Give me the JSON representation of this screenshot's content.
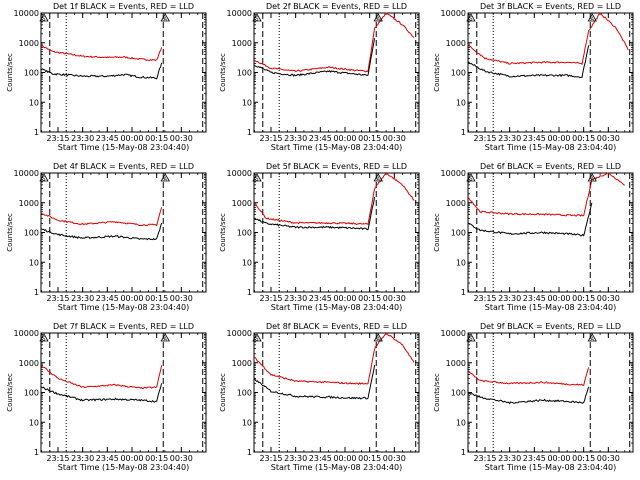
{
  "chart_data": {
    "type": "line",
    "layout": "3x3 grid of panels",
    "common": {
      "xlabel": "Start Time (15-May-08 23:04:40)",
      "ylabel": "Counts/sec",
      "x_tick_labels": [
        "23:15",
        "23:30",
        "23:45",
        "00:00",
        "00:15",
        "00:30"
      ],
      "y_tick_labels": [
        "1",
        "10",
        "100",
        "1000",
        "10000"
      ],
      "yscale": "log",
      "ylim": [
        1,
        10000
      ],
      "x_range": [
        "23:04:40",
        "00:45"
      ],
      "series_colors": {
        "events": "#000000",
        "lld": "#dd0000"
      },
      "markers": {
        "dashed_lines": [
          "23:10",
          "00:19",
          "00:43"
        ],
        "dotted_lines": [
          "23:20"
        ],
        "triangle_labels": [
          "S",
          "A"
        ]
      }
    },
    "panels": [
      {
        "title": "Det 1f BLACK = Events, RED = LLD",
        "events": [
          {
            "t": "23:05",
            "v": 130
          },
          {
            "t": "23:12",
            "v": 90
          },
          {
            "t": "23:30",
            "v": 75
          },
          {
            "t": "23:45",
            "v": 75
          },
          {
            "t": "23:55",
            "v": 85
          },
          {
            "t": "00:05",
            "v": 70
          },
          {
            "t": "00:15",
            "v": 65
          },
          {
            "t": "00:18",
            "v": 200
          }
        ],
        "lld": [
          {
            "t": "23:05",
            "v": 800
          },
          {
            "t": "23:12",
            "v": 500
          },
          {
            "t": "23:30",
            "v": 350
          },
          {
            "t": "23:45",
            "v": 320
          },
          {
            "t": "23:55",
            "v": 330
          },
          {
            "t": "00:05",
            "v": 280
          },
          {
            "t": "00:15",
            "v": 260
          },
          {
            "t": "00:18",
            "v": 700
          }
        ]
      },
      {
        "title": "Det 2f BLACK = Events, RED = LLD",
        "events": [
          {
            "t": "23:05",
            "v": 180
          },
          {
            "t": "23:15",
            "v": 100
          },
          {
            "t": "23:30",
            "v": 80
          },
          {
            "t": "23:50",
            "v": 110
          },
          {
            "t": "00:05",
            "v": 90
          },
          {
            "t": "00:14",
            "v": 80
          },
          {
            "t": "00:18",
            "v": 1500
          }
        ],
        "lld": [
          {
            "t": "23:05",
            "v": 260
          },
          {
            "t": "23:15",
            "v": 140
          },
          {
            "t": "23:30",
            "v": 110
          },
          {
            "t": "23:50",
            "v": 150
          },
          {
            "t": "00:05",
            "v": 120
          },
          {
            "t": "00:14",
            "v": 110
          },
          {
            "t": "00:18",
            "v": 3000
          },
          {
            "t": "00:25",
            "v": 10000
          },
          {
            "t": "00:35",
            "v": 4000
          },
          {
            "t": "00:42",
            "v": 1500
          }
        ]
      },
      {
        "title": "Det 3f BLACK = Events, RED = LLD",
        "events": [
          {
            "t": "23:05",
            "v": 220
          },
          {
            "t": "23:15",
            "v": 110
          },
          {
            "t": "23:30",
            "v": 75
          },
          {
            "t": "23:50",
            "v": 80
          },
          {
            "t": "00:05",
            "v": 80
          },
          {
            "t": "00:14",
            "v": 70
          },
          {
            "t": "00:18",
            "v": 800
          }
        ],
        "lld": [
          {
            "t": "23:05",
            "v": 800
          },
          {
            "t": "23:15",
            "v": 300
          },
          {
            "t": "23:30",
            "v": 200
          },
          {
            "t": "23:50",
            "v": 220
          },
          {
            "t": "00:05",
            "v": 220
          },
          {
            "t": "00:14",
            "v": 200
          },
          {
            "t": "00:18",
            "v": 2500
          },
          {
            "t": "00:25",
            "v": 10000
          },
          {
            "t": "00:35",
            "v": 3000
          },
          {
            "t": "00:42",
            "v": 600
          }
        ]
      },
      {
        "title": "Det 4f BLACK = Events, RED = LLD",
        "events": [
          {
            "t": "23:05",
            "v": 130
          },
          {
            "t": "23:15",
            "v": 85
          },
          {
            "t": "23:30",
            "v": 65
          },
          {
            "t": "23:50",
            "v": 75
          },
          {
            "t": "00:05",
            "v": 60
          },
          {
            "t": "00:15",
            "v": 60
          },
          {
            "t": "00:18",
            "v": 200
          }
        ],
        "lld": [
          {
            "t": "23:05",
            "v": 450
          },
          {
            "t": "23:15",
            "v": 260
          },
          {
            "t": "23:30",
            "v": 190
          },
          {
            "t": "23:50",
            "v": 230
          },
          {
            "t": "00:05",
            "v": 180
          },
          {
            "t": "00:15",
            "v": 180
          },
          {
            "t": "00:18",
            "v": 700
          }
        ]
      },
      {
        "title": "Det 5f BLACK = Events, RED = LLD",
        "events": [
          {
            "t": "23:05",
            "v": 300
          },
          {
            "t": "23:12",
            "v": 200
          },
          {
            "t": "23:30",
            "v": 150
          },
          {
            "t": "23:50",
            "v": 150
          },
          {
            "t": "00:05",
            "v": 140
          },
          {
            "t": "00:14",
            "v": 130
          },
          {
            "t": "00:18",
            "v": 1500
          }
        ],
        "lld": [
          {
            "t": "23:05",
            "v": 1000
          },
          {
            "t": "23:12",
            "v": 300
          },
          {
            "t": "23:30",
            "v": 210
          },
          {
            "t": "23:50",
            "v": 210
          },
          {
            "t": "00:05",
            "v": 200
          },
          {
            "t": "00:14",
            "v": 190
          },
          {
            "t": "00:18",
            "v": 3000
          },
          {
            "t": "00:25",
            "v": 10000
          },
          {
            "t": "00:35",
            "v": 4000
          },
          {
            "t": "00:42",
            "v": 1200
          }
        ]
      },
      {
        "title": "Det 6f BLACK = Events, RED = LLD",
        "events": [
          {
            "t": "23:05",
            "v": 200
          },
          {
            "t": "23:12",
            "v": 120
          },
          {
            "t": "23:30",
            "v": 90
          },
          {
            "t": "23:50",
            "v": 100
          },
          {
            "t": "00:05",
            "v": 90
          },
          {
            "t": "00:15",
            "v": 80
          },
          {
            "t": "00:20",
            "v": 1000
          }
        ],
        "lld": [
          {
            "t": "23:05",
            "v": 1500
          },
          {
            "t": "23:12",
            "v": 500
          },
          {
            "t": "23:30",
            "v": 420
          },
          {
            "t": "23:50",
            "v": 410
          },
          {
            "t": "00:05",
            "v": 380
          },
          {
            "t": "00:15",
            "v": 370
          },
          {
            "t": "00:20",
            "v": 6000
          },
          {
            "t": "00:30",
            "v": 10000
          },
          {
            "t": "00:40",
            "v": 4000
          }
        ]
      },
      {
        "title": "Det 7f BLACK = Events, RED = LLD",
        "events": [
          {
            "t": "23:05",
            "v": 150
          },
          {
            "t": "23:15",
            "v": 90
          },
          {
            "t": "23:30",
            "v": 55
          },
          {
            "t": "23:50",
            "v": 60
          },
          {
            "t": "00:05",
            "v": 55
          },
          {
            "t": "00:15",
            "v": 50
          },
          {
            "t": "00:18",
            "v": 200
          }
        ],
        "lld": [
          {
            "t": "23:05",
            "v": 800
          },
          {
            "t": "23:15",
            "v": 300
          },
          {
            "t": "23:30",
            "v": 150
          },
          {
            "t": "23:50",
            "v": 180
          },
          {
            "t": "00:05",
            "v": 140
          },
          {
            "t": "00:15",
            "v": 150
          },
          {
            "t": "00:18",
            "v": 800
          }
        ]
      },
      {
        "title": "Det 8f BLACK = Events, RED = LLD",
        "events": [
          {
            "t": "23:05",
            "v": 280
          },
          {
            "t": "23:15",
            "v": 110
          },
          {
            "t": "23:30",
            "v": 75
          },
          {
            "t": "23:50",
            "v": 70
          },
          {
            "t": "00:05",
            "v": 65
          },
          {
            "t": "00:14",
            "v": 65
          },
          {
            "t": "00:18",
            "v": 800
          }
        ],
        "lld": [
          {
            "t": "23:05",
            "v": 1500
          },
          {
            "t": "23:15",
            "v": 400
          },
          {
            "t": "23:30",
            "v": 240
          },
          {
            "t": "23:50",
            "v": 220
          },
          {
            "t": "00:05",
            "v": 200
          },
          {
            "t": "00:14",
            "v": 200
          },
          {
            "t": "00:18",
            "v": 3000
          },
          {
            "t": "00:25",
            "v": 10000
          },
          {
            "t": "00:35",
            "v": 4000
          },
          {
            "t": "00:42",
            "v": 1000
          }
        ]
      },
      {
        "title": "Det 9f BLACK = Events, RED = LLD",
        "events": [
          {
            "t": "23:05",
            "v": 100
          },
          {
            "t": "23:12",
            "v": 70
          },
          {
            "t": "23:30",
            "v": 45
          },
          {
            "t": "23:50",
            "v": 55
          },
          {
            "t": "00:05",
            "v": 50
          },
          {
            "t": "00:15",
            "v": 45
          },
          {
            "t": "00:18",
            "v": 150
          }
        ],
        "lld": [
          {
            "t": "23:05",
            "v": 500
          },
          {
            "t": "23:12",
            "v": 250
          },
          {
            "t": "23:30",
            "v": 200
          },
          {
            "t": "23:50",
            "v": 220
          },
          {
            "t": "00:05",
            "v": 190
          },
          {
            "t": "00:15",
            "v": 180
          },
          {
            "t": "00:18",
            "v": 700
          }
        ]
      }
    ]
  }
}
